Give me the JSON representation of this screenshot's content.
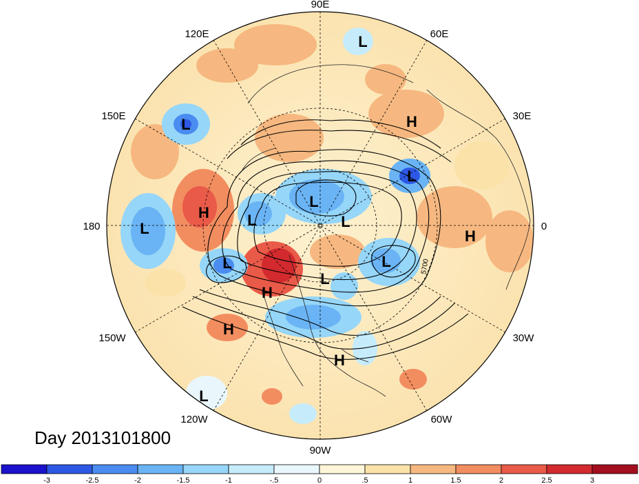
{
  "map": {
    "projection": "polar-stereographic-north",
    "longitude_labels": [
      "90E",
      "60E",
      "30E",
      "0",
      "30W",
      "60W",
      "90W",
      "120W",
      "150W",
      "180",
      "150E",
      "120E"
    ],
    "contour_label": "5700",
    "pressure_centers": [
      {
        "type": "L",
        "lon_label": "90E region"
      },
      {
        "type": "L"
      },
      {
        "type": "L"
      },
      {
        "type": "L"
      },
      {
        "type": "L"
      },
      {
        "type": "L"
      },
      {
        "type": "L"
      },
      {
        "type": "L"
      },
      {
        "type": "L"
      },
      {
        "type": "L"
      },
      {
        "type": "L"
      },
      {
        "type": "H"
      },
      {
        "type": "H"
      },
      {
        "type": "H"
      },
      {
        "type": "H"
      },
      {
        "type": "H"
      },
      {
        "type": "H"
      }
    ]
  },
  "title": {
    "day_label": "Day 2013101800"
  },
  "colorbar": {
    "tick_labels": [
      "-3",
      "-2.5",
      "-2",
      "-1.5",
      "-1",
      "-.5",
      "0",
      ".5",
      "1",
      "1.5",
      "2",
      "2.5",
      "3"
    ],
    "colors": [
      "#1b12cc",
      "#2d58e6",
      "#4a8cf0",
      "#6ab4f5",
      "#96d6f8",
      "#c6ecfb",
      "#e9f7fd",
      "#fdf6d8",
      "#fbe2a8",
      "#f6b880",
      "#f28d60",
      "#ea5a48",
      "#d22a2e",
      "#a30f1e"
    ]
  }
}
